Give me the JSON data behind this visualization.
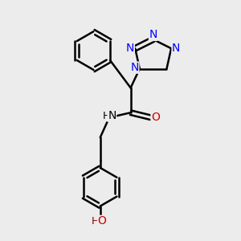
{
  "bg_color": "#ececec",
  "bond_lw": 1.8,
  "font_size": 10,
  "figsize": [
    3.0,
    3.0
  ],
  "dpi": 100,
  "xlim": [
    0,
    10
  ],
  "ylim": [
    0,
    10.5
  ]
}
